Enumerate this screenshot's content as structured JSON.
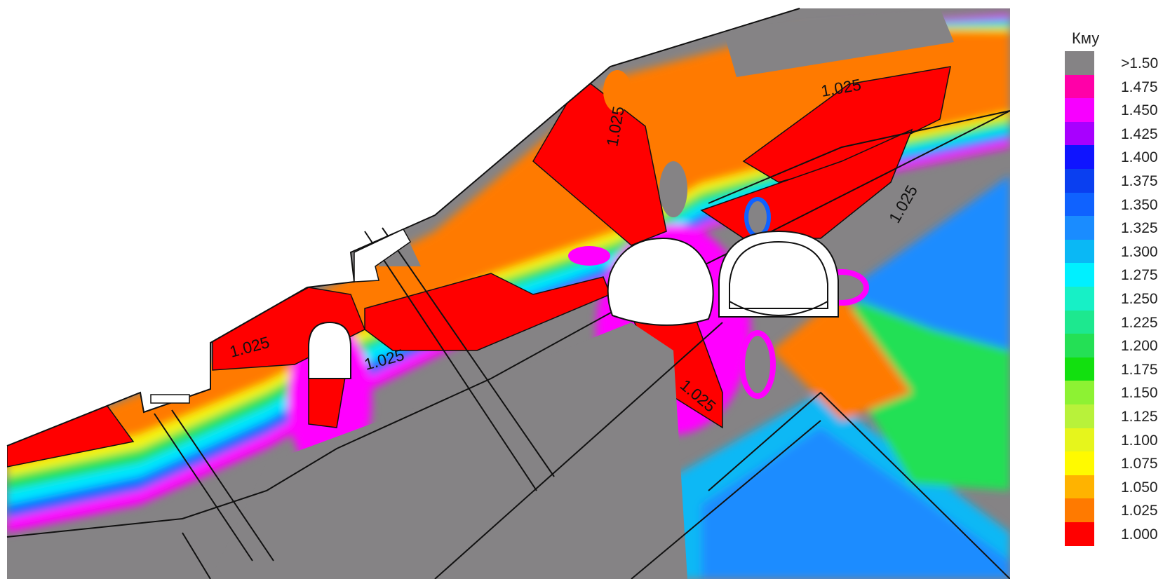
{
  "figure": {
    "description_none": "",
    "contour_value_label": "1.025"
  },
  "legend": {
    "title": "Кму",
    "items": [
      {
        "label": ">1.50",
        "color": "#858385"
      },
      {
        "label": "1.475",
        "color": "#ff00a8"
      },
      {
        "label": "1.450",
        "color": "#f700ff"
      },
      {
        "label": "1.425",
        "color": "#a800ff"
      },
      {
        "label": "1.400",
        "color": "#0f14ff"
      },
      {
        "label": "1.375",
        "color": "#0a3ff0"
      },
      {
        "label": "1.350",
        "color": "#0f62ff"
      },
      {
        "label": "1.325",
        "color": "#1a8cff"
      },
      {
        "label": "1.300",
        "color": "#0ab8f5"
      },
      {
        "label": "1.275",
        "color": "#00f0ff"
      },
      {
        "label": "1.250",
        "color": "#17f0c6"
      },
      {
        "label": "1.225",
        "color": "#1de88f"
      },
      {
        "label": "1.200",
        "color": "#24e055"
      },
      {
        "label": "1.175",
        "color": "#12e00f"
      },
      {
        "label": "1.150",
        "color": "#8df233"
      },
      {
        "label": "1.125",
        "color": "#b8f23a"
      },
      {
        "label": "1.100",
        "color": "#e6f51c"
      },
      {
        "label": "1.075",
        "color": "#fffa00"
      },
      {
        "label": "1.050",
        "color": "#ffb300"
      },
      {
        "label": "1.025",
        "color": "#ff7a00"
      },
      {
        "label": "1.000",
        "color": "#ff3c00"
      }
    ],
    "bottom_color": "#ff0000"
  },
  "colors": {
    "gray": "#858385",
    "red": "#ff0000",
    "orange": "#ff7a00",
    "yellow": "#f5f50a",
    "green": "#24e055",
    "cyan": "#00e8ff",
    "blue": "#0f62ff",
    "violet": "#a800ff",
    "magenta": "#ff00ff",
    "outline": "#111111"
  }
}
